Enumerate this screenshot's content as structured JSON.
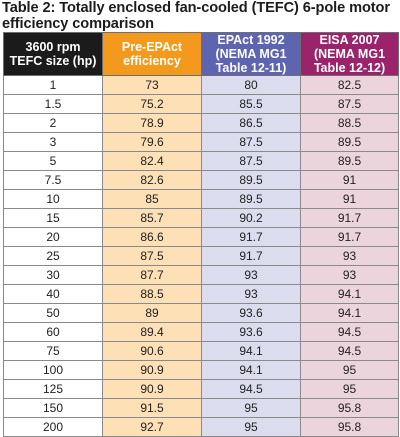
{
  "title": "Table 2: Totally enclosed fan-cooled (TEFC) 6-pole motor efficiency comparison",
  "table": {
    "headers": [
      [
        "3600 rpm",
        "TEFC size (hp)"
      ],
      [
        "Pre-EPAct",
        "efficiency"
      ],
      [
        "EPAct 1992",
        "(NEMA MG1",
        "Table 12-11)"
      ],
      [
        "EISA 2007",
        "(NEMA MG1",
        "Table 12-12)"
      ]
    ],
    "rows": [
      [
        "1",
        "73",
        "80",
        "82.5"
      ],
      [
        "1.5",
        "75.2",
        "85.5",
        "87.5"
      ],
      [
        "2",
        "78.9",
        "86.5",
        "88.5"
      ],
      [
        "3",
        "79.6",
        "87.5",
        "89.5"
      ],
      [
        "5",
        "82.4",
        "87.5",
        "89.5"
      ],
      [
        "7.5",
        "82.6",
        "89.5",
        "91"
      ],
      [
        "10",
        "85",
        "89.5",
        "91"
      ],
      [
        "15",
        "85.7",
        "90.2",
        "91.7"
      ],
      [
        "20",
        "86.6",
        "91.7",
        "91.7"
      ],
      [
        "25",
        "87.5",
        "91.7",
        "93"
      ],
      [
        "30",
        "87.7",
        "93",
        "93"
      ],
      [
        "40",
        "88.5",
        "93",
        "94.1"
      ],
      [
        "50",
        "89",
        "93.6",
        "94.1"
      ],
      [
        "60",
        "89.4",
        "93.6",
        "94.5"
      ],
      [
        "75",
        "90.6",
        "94.1",
        "94.5"
      ],
      [
        "100",
        "90.9",
        "94.1",
        "95"
      ],
      [
        "125",
        "90.9",
        "94.5",
        "95"
      ],
      [
        "150",
        "91.5",
        "95",
        "95.8"
      ],
      [
        "200",
        "92.7",
        "95",
        "95.8"
      ]
    ]
  },
  "colors": {
    "header_size": "#1b1b1b",
    "header_pre_epact": "#f39a1e",
    "header_epact": "#5d64b0",
    "header_eisa": "#9a236b",
    "cell_size": "#ffffff",
    "cell_pre_epact": "#fde0b6",
    "cell_epact": "#dcdcef",
    "cell_eisa": "#ecd4dc"
  }
}
